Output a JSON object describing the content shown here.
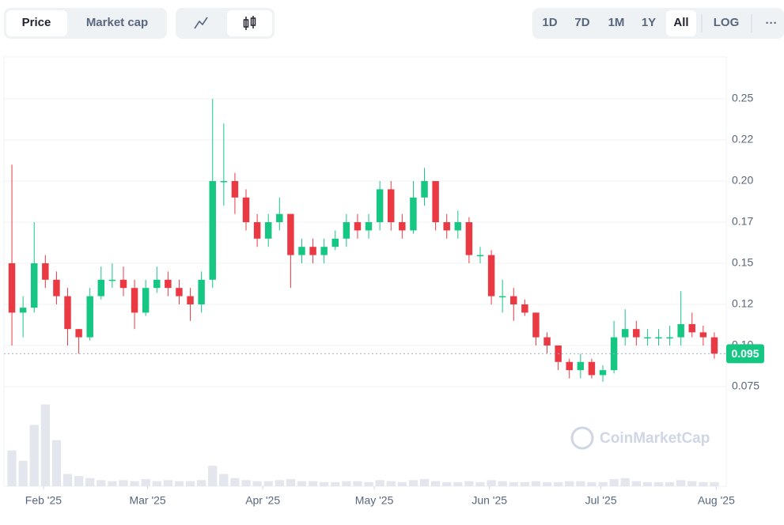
{
  "controls": {
    "tabs": [
      "Price",
      "Market cap"
    ],
    "ranges": [
      "1D",
      "7D",
      "1M",
      "1Y",
      "All"
    ],
    "log": "LOG",
    "more": "···"
  },
  "chart_data": {
    "type": "candlestick",
    "watermark": "CoinMarketCap",
    "up_color": "#16c784",
    "down_color": "#ea3943",
    "volume_color": "#e3e6ec",
    "grid": true,
    "xlim": [
      0,
      64
    ],
    "xticks": [
      {
        "value": 3.33,
        "label": "Feb '25"
      },
      {
        "value": 12.67,
        "label": "Mar '25"
      },
      {
        "value": 23,
        "label": "Apr '25"
      },
      {
        "value": 33,
        "label": "May '25"
      },
      {
        "value": 43.33,
        "label": "Jun '25"
      },
      {
        "value": 53.33,
        "label": "Jul '25"
      },
      {
        "value": 63.67,
        "label": "Aug '25"
      }
    ],
    "ylim": [
      0.0144,
      0.2755
    ],
    "yticks": [
      0.075,
      {
        "value": 0.1,
        "label": "0.10"
      },
      {
        "value": 0.125,
        "label": "0.12"
      },
      {
        "value": 0.15,
        "label": "0.15"
      },
      {
        "value": 0.175,
        "label": "0.17"
      },
      {
        "value": 0.2,
        "label": "0.20"
      },
      {
        "value": 0.225,
        "label": "0.22"
      },
      0.25
    ],
    "last_price": 0.095,
    "open": [
      0.15,
      0.12,
      0.123,
      0.15,
      0.14,
      0.13,
      0.11,
      0.105,
      0.13,
      0.14,
      0.14,
      0.135,
      0.12,
      0.135,
      0.14,
      0.135,
      0.13,
      0.125,
      0.14,
      0.2,
      0.2,
      0.19,
      0.175,
      0.165,
      0.175,
      0.18,
      0.155,
      0.16,
      0.155,
      0.16,
      0.165,
      0.175,
      0.17,
      0.175,
      0.195,
      0.175,
      0.17,
      0.19,
      0.2,
      0.175,
      0.17,
      0.175,
      0.155,
      0.155,
      0.13,
      0.13,
      0.125,
      0.12,
      0.105,
      0.1,
      0.09,
      0.085,
      0.09,
      0.082,
      0.085,
      0.105,
      0.11,
      0.105,
      0.105,
      0.105,
      0.105,
      0.113,
      0.108,
      0.105
    ],
    "high": [
      0.21,
      0.13,
      0.175,
      0.155,
      0.145,
      0.135,
      0.11,
      0.135,
      0.148,
      0.15,
      0.148,
      0.14,
      0.14,
      0.148,
      0.145,
      0.14,
      0.135,
      0.145,
      0.25,
      0.235,
      0.205,
      0.195,
      0.18,
      0.18,
      0.19,
      0.18,
      0.165,
      0.165,
      0.165,
      0.17,
      0.18,
      0.18,
      0.18,
      0.2,
      0.2,
      0.18,
      0.2,
      0.208,
      0.2,
      0.18,
      0.182,
      0.178,
      0.16,
      0.158,
      0.14,
      0.135,
      0.128,
      0.12,
      0.108,
      0.1,
      0.092,
      0.095,
      0.092,
      0.088,
      0.115,
      0.122,
      0.115,
      0.11,
      0.11,
      0.112,
      0.133,
      0.12,
      0.112,
      0.108
    ],
    "low": [
      0.1,
      0.105,
      0.12,
      0.135,
      0.125,
      0.1,
      0.095,
      0.103,
      0.128,
      0.135,
      0.13,
      0.11,
      0.118,
      0.132,
      0.13,
      0.125,
      0.115,
      0.12,
      0.135,
      0.185,
      0.18,
      0.17,
      0.16,
      0.16,
      0.17,
      0.135,
      0.15,
      0.15,
      0.15,
      0.158,
      0.16,
      0.165,
      0.165,
      0.17,
      0.17,
      0.165,
      0.168,
      0.185,
      0.17,
      0.165,
      0.165,
      0.15,
      0.15,
      0.125,
      0.12,
      0.115,
      0.118,
      0.1,
      0.095,
      0.085,
      0.08,
      0.08,
      0.08,
      0.078,
      0.083,
      0.1,
      0.1,
      0.1,
      0.1,
      0.1,
      0.1,
      0.105,
      0.1,
      0.092
    ],
    "close": [
      0.12,
      0.123,
      0.15,
      0.14,
      0.13,
      0.11,
      0.105,
      0.13,
      0.14,
      0.14,
      0.135,
      0.12,
      0.135,
      0.14,
      0.135,
      0.13,
      0.125,
      0.14,
      0.2,
      0.2,
      0.19,
      0.175,
      0.165,
      0.175,
      0.18,
      0.155,
      0.16,
      0.155,
      0.16,
      0.165,
      0.175,
      0.17,
      0.175,
      0.195,
      0.175,
      0.17,
      0.19,
      0.2,
      0.175,
      0.17,
      0.175,
      0.155,
      0.155,
      0.13,
      0.13,
      0.125,
      0.12,
      0.105,
      0.1,
      0.09,
      0.085,
      0.09,
      0.082,
      0.085,
      0.105,
      0.11,
      0.105,
      0.105,
      0.105,
      0.105,
      0.113,
      0.108,
      0.105,
      0.095
    ],
    "volume_ylim": [
      0,
      85
    ],
    "volume": [
      35,
      25,
      60,
      80,
      45,
      12,
      10,
      8,
      6,
      5,
      6,
      5,
      7,
      5,
      6,
      5,
      5,
      6,
      20,
      12,
      8,
      6,
      5,
      5,
      6,
      7,
      5,
      5,
      4,
      4,
      5,
      5,
      4,
      6,
      5,
      4,
      6,
      7,
      5,
      4,
      4,
      5,
      4,
      6,
      5,
      4,
      4,
      5,
      4,
      4,
      5,
      5,
      4,
      4,
      7,
      8,
      5,
      4,
      4,
      4,
      6,
      5,
      4,
      4
    ]
  }
}
